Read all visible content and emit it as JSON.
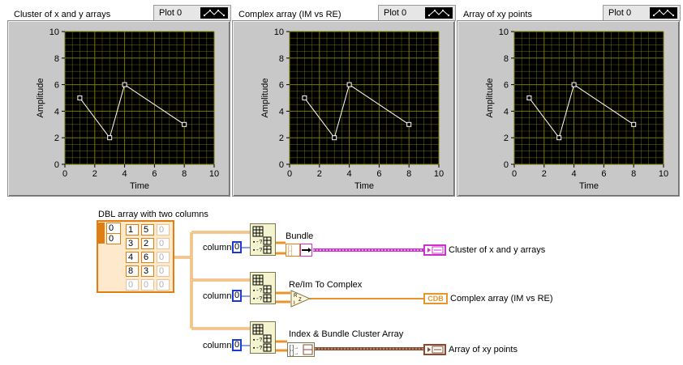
{
  "graphs": [
    {
      "title": "Cluster of x and y arrays",
      "legend_label": "Plot 0",
      "ylabel": "Amplitude",
      "xlabel": "Time"
    },
    {
      "title": "Complex array (IM vs RE)",
      "legend_label": "Plot 0",
      "ylabel": "Amplitude",
      "xlabel": "Time"
    },
    {
      "title": "Array of xy points",
      "legend_label": "Plot 0",
      "ylabel": "Amplitude",
      "xlabel": "Time"
    }
  ],
  "chart_data": {
    "type": "line",
    "x": [
      1,
      3,
      4,
      8
    ],
    "series": [
      {
        "values": [
          5,
          2,
          6,
          3
        ]
      }
    ],
    "xlim": [
      0,
      10
    ],
    "ylim": [
      0,
      10
    ],
    "xticks": [
      "0",
      "2",
      "4",
      "6",
      "8",
      "10"
    ],
    "yticks": [
      "0",
      "2",
      "4",
      "6",
      "8",
      "10"
    ],
    "xlabel": "Time",
    "ylabel": "Amplitude",
    "grid": true,
    "colors": {
      "plot_bg": "#000000",
      "grid": "#7a7a00",
      "line": "#ffffff"
    }
  },
  "diagram": {
    "array_label": "DBL array with two columns",
    "array_index": [
      "0",
      "0"
    ],
    "array_cells": [
      [
        "1",
        "5",
        "0"
      ],
      [
        "3",
        "2",
        "0"
      ],
      [
        "4",
        "6",
        "0"
      ],
      [
        "8",
        "3",
        "0"
      ],
      [
        "0",
        "0",
        "0"
      ]
    ],
    "rows": [
      {
        "column_label": "column",
        "column_value": "0",
        "node_label": "Bundle",
        "indicator_text": "",
        "indicator_label": "Cluster of x and y arrays"
      },
      {
        "column_label": "column",
        "column_value": "0",
        "node_label": "Re/Im To Complex",
        "indicator_text": "CDB",
        "indicator_label": "Complex array (IM vs RE)"
      },
      {
        "column_label": "column",
        "column_value": "0",
        "node_label": "Index & Bundle Cluster Array",
        "indicator_text": "",
        "indicator_label": "Array of xy points"
      }
    ],
    "colors": {
      "orange_wire": "#e8952d",
      "pink_wire": "#cc33cc",
      "brown_wire": "#8b4a2b",
      "blue_ctl": "#1c3bd1"
    }
  }
}
